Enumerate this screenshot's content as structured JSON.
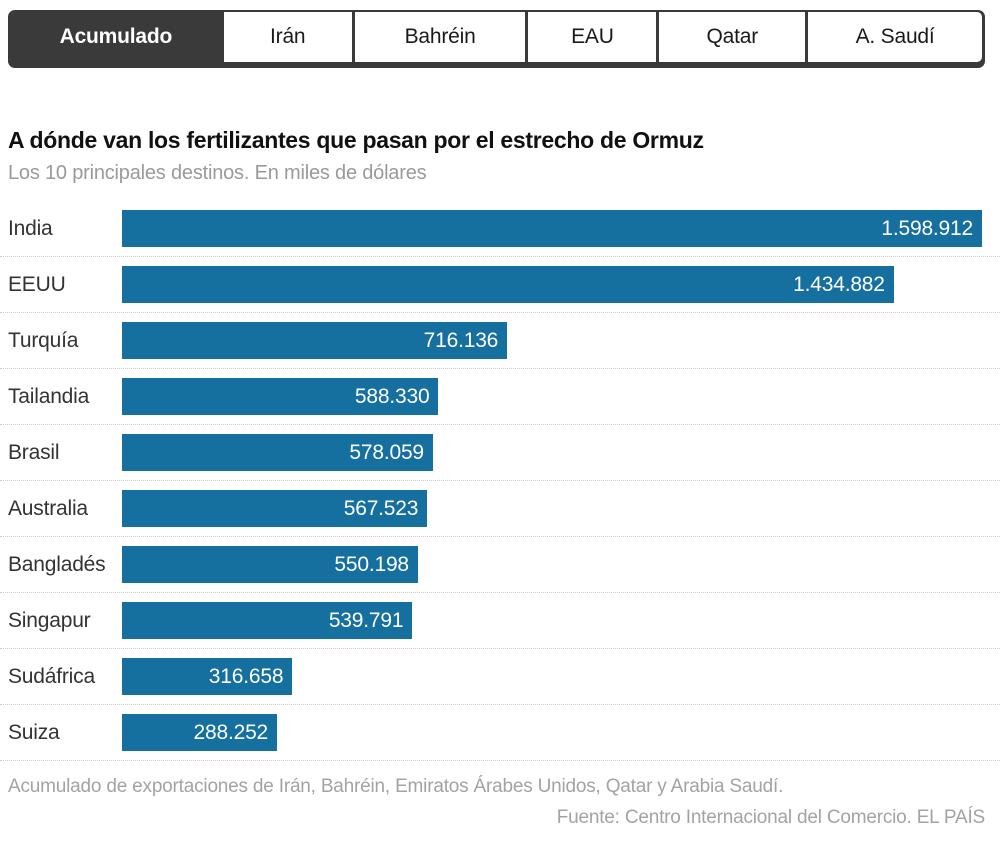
{
  "tabs": [
    {
      "label": "Acumulado",
      "active": true
    },
    {
      "label": "Irán",
      "active": false
    },
    {
      "label": "Bahréin",
      "active": false
    },
    {
      "label": "EAU",
      "active": false
    },
    {
      "label": "Qatar",
      "active": false
    },
    {
      "label": "A. Saudí",
      "active": false
    }
  ],
  "chart": {
    "title": "A dónde van los fertilizantes que pasan por el estrecho de Ormuz",
    "subtitle": "Los 10 principales destinos. En miles de dólares"
  },
  "chart_data": {
    "type": "bar",
    "orientation": "horizontal",
    "title": "A dónde van los fertilizantes que pasan por el estrecho de Ormuz",
    "subtitle": "Los 10 principales destinos. En miles de dólares",
    "xlabel": "",
    "ylabel": "",
    "categories": [
      "India",
      "EEUU",
      "Turquía",
      "Tailandia",
      "Brasil",
      "Australia",
      "Bangladés",
      "Singapur",
      "Sudáfrica",
      "Suiza"
    ],
    "values": [
      1598912,
      1434882,
      716136,
      588330,
      578059,
      567523,
      550198,
      539791,
      316658,
      288252
    ],
    "value_labels": [
      "1.598.912",
      "1.434.882",
      "716.136",
      "588.330",
      "578.059",
      "567.523",
      "550.198",
      "539.791",
      "316.658",
      "288.252"
    ],
    "xlim": [
      0,
      1598912
    ],
    "grid": false,
    "legend": false,
    "bar_color": "#156f9f",
    "value_label_color": "#ffffff"
  },
  "footer": {
    "note": "Acumulado de exportaciones de Irán, Bahréin, Emiratos Árabes Unidos, Qatar y Arabia Saudí.",
    "source": "Fuente: Centro Internacional del Comercio. EL PAÍS"
  },
  "colors": {
    "bar": "#156f9f",
    "tab_active_bg": "#3a3a3a",
    "tab_inactive_bg": "#ffffff",
    "subtitle_text": "#9a9a9a",
    "footer_text": "#a3a3a3",
    "separator": "#cccccc"
  }
}
